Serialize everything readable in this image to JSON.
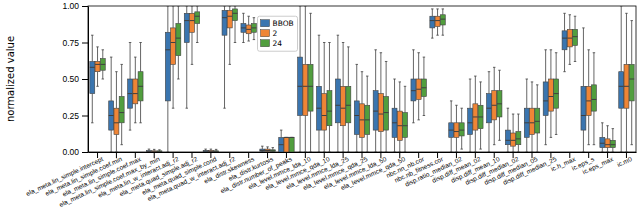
{
  "chart_data": {
    "type": "box",
    "y_label": "normalized value",
    "categories": [
      "ela_meta.lin_simple.intercept",
      "ela_meta.lin_simple.coef.min",
      "ela_meta.lin_simple.coef.max",
      "ela_meta.lin_simple.coef.max_by_min",
      "ela_meta.lin_w_interact.adj_r2",
      "ela_meta.quad_simple.adj_r2",
      "ela_meta.quad_simple.cond",
      "ela_meta.quad_w_interact.adj_r2",
      "ela_distr.skewness",
      "ela_distr.kurtosis",
      "ela_distr.number_of_peaks",
      "ela_level.mmce_lda_10",
      "ela_level.mmce_qda_10",
      "ela_level.mmce_lda_25",
      "ela_level.mmce_qda_25",
      "ela_level.mmce_lda_50",
      "ela_level.mmce_qda_50",
      "nbc.nn_nb.cor",
      "nbc.nb_fitness.cor",
      "disp.ratio_median_02",
      "disp.diff_mean_02",
      "disp.diff_mean_10",
      "disp.diff_median_02",
      "disp.diff_median_05",
      "disp.diff_median_25",
      "ic.h_max",
      "ic.eps_s",
      "ic.eps_max",
      "ic.m0"
    ],
    "series": [
      {
        "name": "BBOB",
        "color": "#3a75af",
        "whisker_low": [
          0.2,
          0,
          0.15,
          0,
          0,
          0.3,
          0,
          0.3,
          0.75,
          0,
          0,
          0,
          0,
          0,
          0,
          0,
          0,
          0.2,
          0.78,
          0,
          0,
          0,
          0,
          0,
          0.05,
          0.55,
          0,
          0,
          0
        ],
        "q1": [
          0.4,
          0.15,
          0.3,
          0,
          0.35,
          0.75,
          0,
          0.8,
          0.82,
          0.005,
          0,
          0.25,
          0.15,
          0.2,
          0.12,
          0.15,
          0.1,
          0.35,
          0.85,
          0.1,
          0.12,
          0.2,
          0.05,
          0.1,
          0.25,
          0.7,
          0.15,
          0.03,
          0.3
        ],
        "median": [
          0.58,
          0.25,
          0.4,
          0.003,
          0.7,
          0.9,
          0.005,
          0.92,
          0.85,
          0.01,
          0.05,
          0.45,
          0.3,
          0.32,
          0.25,
          0.28,
          0.2,
          0.42,
          0.9,
          0.15,
          0.2,
          0.3,
          0.08,
          0.2,
          0.35,
          0.78,
          0.25,
          0.06,
          0.45
        ],
        "q3": [
          0.62,
          0.35,
          0.5,
          0.01,
          0.82,
          0.95,
          0.01,
          0.97,
          0.88,
          0.02,
          0.1,
          0.65,
          0.45,
          0.5,
          0.35,
          0.42,
          0.3,
          0.5,
          0.93,
          0.2,
          0.3,
          0.4,
          0.15,
          0.3,
          0.48,
          0.83,
          0.45,
          0.1,
          0.55
        ],
        "whisker_high": [
          0.8,
          0.65,
          0.75,
          0.02,
          1,
          1,
          0.02,
          1,
          0.95,
          0.04,
          0.15,
          1,
          0.8,
          0.8,
          0.6,
          0.7,
          0.5,
          0.7,
          0.98,
          0.35,
          0.5,
          0.55,
          0.3,
          0.5,
          0.7,
          0.95,
          0.85,
          0.2,
          1
        ]
      },
      {
        "name": "2",
        "color": "#ef8536",
        "whisker_low": [
          0.45,
          0,
          0.2,
          0,
          0.3,
          0.6,
          0,
          0.6,
          0.76,
          0,
          0,
          0,
          0,
          0,
          0,
          0,
          0,
          0.22,
          0.8,
          0,
          0,
          0.05,
          0,
          0,
          0.1,
          0.6,
          0.05,
          0,
          0
        ],
        "q1": [
          0.55,
          0.12,
          0.33,
          0,
          0.6,
          0.82,
          0,
          0.85,
          0.81,
          0.004,
          0,
          0.25,
          0.15,
          0.18,
          0.1,
          0.14,
          0.08,
          0.36,
          0.86,
          0.1,
          0.15,
          0.22,
          0.04,
          0.12,
          0.28,
          0.72,
          0.25,
          0.03,
          0.3
        ],
        "median": [
          0.6,
          0.2,
          0.4,
          0.002,
          0.75,
          0.9,
          0.004,
          0.93,
          0.84,
          0.01,
          0.1,
          0.45,
          0.25,
          0.3,
          0.22,
          0.26,
          0.18,
          0.43,
          0.9,
          0.14,
          0.24,
          0.32,
          0.08,
          0.2,
          0.38,
          0.78,
          0.35,
          0.05,
          0.45
        ],
        "q3": [
          0.62,
          0.3,
          0.5,
          0.008,
          0.85,
          0.95,
          0.01,
          0.97,
          0.87,
          0.02,
          0.1,
          0.6,
          0.4,
          0.45,
          0.33,
          0.4,
          0.28,
          0.5,
          0.93,
          0.2,
          0.33,
          0.42,
          0.13,
          0.3,
          0.5,
          0.84,
          0.45,
          0.09,
          0.6
        ],
        "whisker_high": [
          0.72,
          0.55,
          0.65,
          0.018,
          1,
          1,
          0.02,
          1,
          0.93,
          0.035,
          0.1,
          1,
          0.75,
          0.75,
          0.55,
          0.68,
          0.48,
          0.68,
          0.98,
          0.32,
          0.52,
          0.58,
          0.26,
          0.48,
          0.7,
          0.94,
          0.7,
          0.18,
          0.95
        ]
      },
      {
        "name": "24",
        "color": "#519e3e",
        "whisker_low": [
          0.5,
          0.05,
          0.2,
          0,
          0.5,
          0.75,
          0,
          0.75,
          0.77,
          0,
          0,
          0,
          0,
          0,
          0,
          0,
          0,
          0.25,
          0.8,
          0.02,
          0.02,
          0.08,
          0,
          0,
          0.12,
          0.62,
          0.05,
          0,
          0.05
        ],
        "q1": [
          0.56,
          0.2,
          0.35,
          0,
          0.66,
          0.88,
          0,
          0.9,
          0.82,
          0.004,
          0,
          0.28,
          0.18,
          0.2,
          0.12,
          0.15,
          0.1,
          0.38,
          0.87,
          0.11,
          0.16,
          0.24,
          0.05,
          0.13,
          0.3,
          0.73,
          0.28,
          0.03,
          0.35
        ],
        "median": [
          0.6,
          0.27,
          0.45,
          0.002,
          0.78,
          0.93,
          0.004,
          0.95,
          0.85,
          0.008,
          0.1,
          0.45,
          0.28,
          0.32,
          0.22,
          0.27,
          0.18,
          0.44,
          0.91,
          0.15,
          0.24,
          0.33,
          0.09,
          0.21,
          0.4,
          0.79,
          0.36,
          0.05,
          0.5
        ],
        "q3": [
          0.64,
          0.38,
          0.55,
          0.008,
          0.88,
          0.96,
          0.008,
          0.98,
          0.88,
          0.015,
          0.1,
          0.6,
          0.42,
          0.45,
          0.32,
          0.38,
          0.27,
          0.5,
          0.94,
          0.2,
          0.32,
          0.42,
          0.14,
          0.3,
          0.5,
          0.84,
          0.46,
          0.08,
          0.6
        ],
        "whisker_high": [
          0.7,
          0.6,
          0.75,
          0.015,
          1,
          1,
          0.018,
          1,
          0.92,
          0.03,
          0.1,
          0.95,
          0.75,
          0.72,
          0.52,
          0.62,
          0.45,
          0.65,
          0.98,
          0.3,
          0.48,
          0.56,
          0.26,
          0.46,
          0.68,
          0.93,
          0.68,
          0.16,
          0.9
        ]
      }
    ],
    "ylim": [
      0,
      1
    ],
    "yticks": [
      {
        "value": 0,
        "label": "0.00"
      },
      {
        "value": 0.25,
        "label": "0.25"
      },
      {
        "value": 0.5,
        "label": "0.50"
      },
      {
        "value": 0.75,
        "label": "0.75"
      },
      {
        "value": 1,
        "label": "1.00"
      }
    ],
    "grid": false,
    "legend": "upper center"
  }
}
